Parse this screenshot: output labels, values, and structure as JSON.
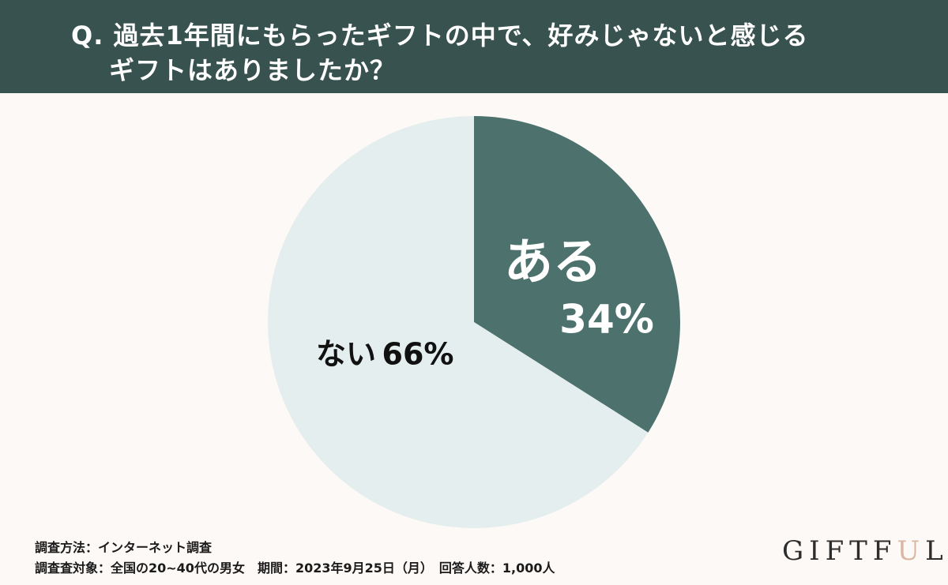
{
  "header": {
    "question_line1": "Q. 過去1年間にもらったギフトの中で、好みじゃないと感じる",
    "question_line2": "ギフトはありましたか？"
  },
  "chart_data": {
    "type": "pie",
    "slices": [
      {
        "label": "ある",
        "value": 34,
        "value_text": "34%",
        "color": "#4d726e",
        "text_color": "#ffffff"
      },
      {
        "label": "ない",
        "value": 66,
        "value_text": "66%",
        "color": "#e4eeee",
        "text_color": "#111111"
      }
    ]
  },
  "footer": {
    "method": "調査方法：インターネット調査",
    "target": "調査査対象：全国の20~40代の男女　期間：2023年9月25日（月）　回答人数：1,000人"
  },
  "logo": {
    "part1": "GIFTF",
    "part2": "U",
    "part3": "L",
    "accent_color": "#d9b7a3"
  }
}
